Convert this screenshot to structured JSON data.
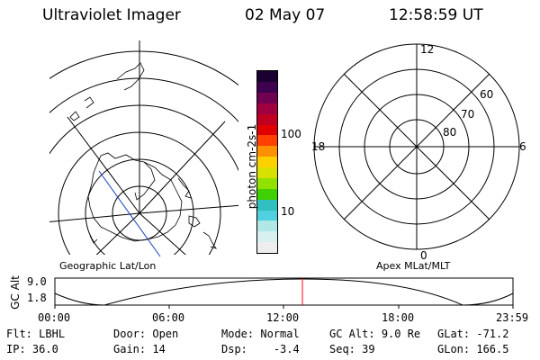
{
  "header": {
    "instrument": "Ultraviolet Imager",
    "date": "02 May 07",
    "time": "12:58:59 UT"
  },
  "left_panel": {
    "label": "Geographic Lat/Lon",
    "map": "coastline-outline"
  },
  "colorbar": {
    "unit_label": "photon cm-2s-1",
    "ticks": [
      "100",
      "10"
    ],
    "colors": [
      "#eeeeee",
      "#d8f0f0",
      "#b0e8e8",
      "#50d0e0",
      "#30c0c0",
      "#40d000",
      "#90e000",
      "#d8e000",
      "#ffd000",
      "#ff9000",
      "#ff4000",
      "#e00000",
      "#c00020",
      "#a00040",
      "#700050",
      "#400050",
      "#1a0030"
    ]
  },
  "right_panel": {
    "label": "Apex MLat/MLT",
    "mlt_labels": {
      "top": "12",
      "left": "18",
      "right": "6",
      "bottom": "0"
    },
    "lat_labels": [
      "60",
      "70",
      "80"
    ]
  },
  "orbit_plot": {
    "ylabel": "GC Alt",
    "yticks": [
      "9.0",
      "1.8"
    ],
    "xticks": [
      "00:00",
      "06:00",
      "12:00",
      "18:00",
      "23:59"
    ],
    "marker_color": "#ff0000"
  },
  "status": {
    "row1": [
      {
        "key": "Flt:",
        "value": "LBHL"
      },
      {
        "key": "Door:",
        "value": "Open"
      },
      {
        "key": "Mode:",
        "value": "Normal"
      },
      {
        "key": "GC Alt:",
        "value": "9.0 Re"
      },
      {
        "key": "GLat:",
        "value": "-71.2"
      }
    ],
    "row2": [
      {
        "key": "IP:",
        "value": "36.0"
      },
      {
        "key": "Gain:",
        "value": "14"
      },
      {
        "key": "Dsp:",
        "value": "-3.4"
      },
      {
        "key": "Seq:",
        "value": "39"
      },
      {
        "key": "GLon:",
        "value": "166.5"
      }
    ]
  }
}
